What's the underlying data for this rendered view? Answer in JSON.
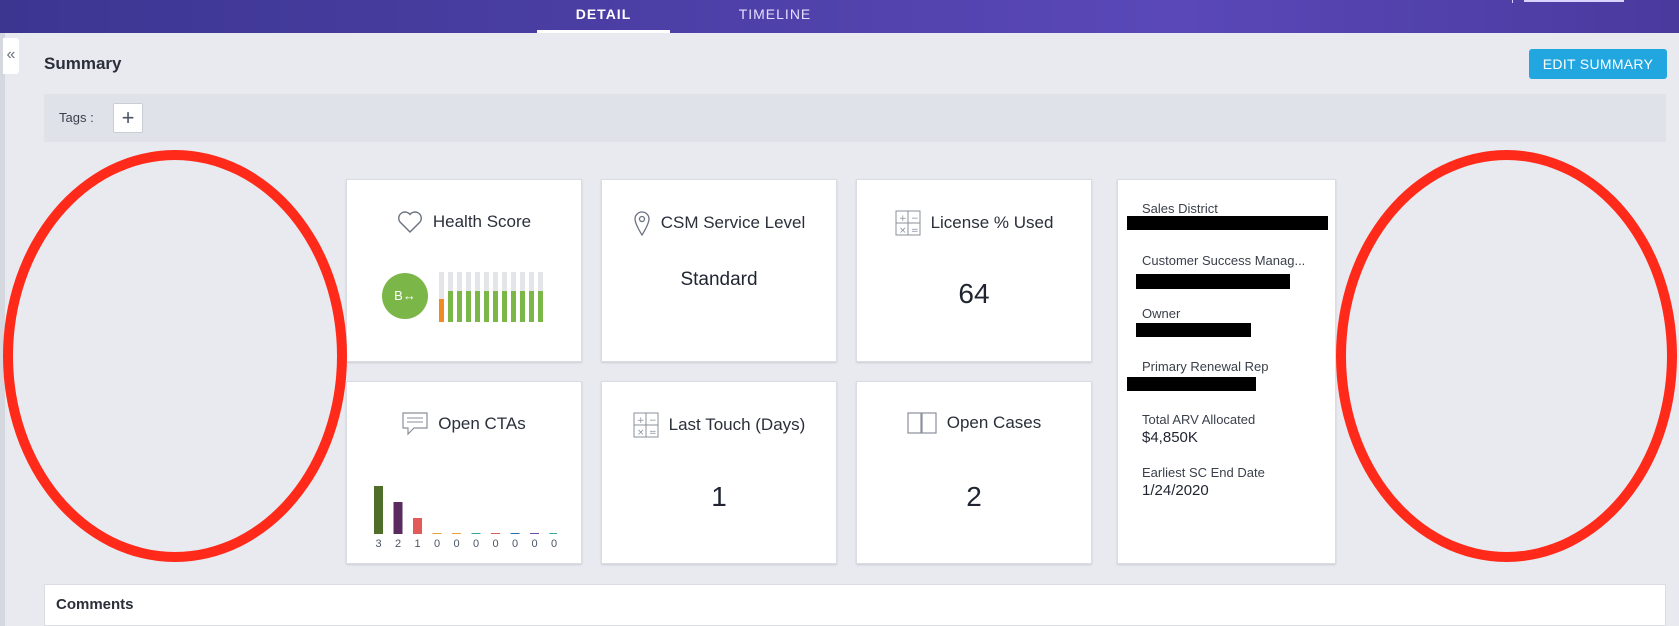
{
  "tabs": [
    {
      "label": "DETAIL",
      "active": true
    },
    {
      "label": "TIMELINE",
      "active": false
    }
  ],
  "sidebar": {
    "collapse_icon": "double-chevron-left-icon",
    "collapse_glyph": "«"
  },
  "summary": {
    "title": "Summary",
    "edit_button": "EDIT SUMMARY",
    "tags_label": "Tags :",
    "add_tag_glyph": "+"
  },
  "cards": {
    "health_score": {
      "title": "Health Score",
      "icon": "heart-icon",
      "badge": "B↔",
      "bar_fills": [
        0.45,
        0.62,
        0.62,
        0.62,
        0.62,
        0.62,
        0.62,
        0.62,
        0.62,
        0.62,
        0.62,
        0.62
      ]
    },
    "csm_service_level": {
      "title": "CSM Service Level",
      "icon": "location-pin-icon",
      "value": "Standard"
    },
    "license_used": {
      "title": "License % Used",
      "icon": "calculator-icon",
      "value": "64"
    },
    "open_ctas": {
      "title": "Open CTAs",
      "icon": "speech-bubble-icon",
      "counts": [
        "3",
        "2",
        "1",
        "0",
        "0",
        "0",
        "0",
        "0",
        "0",
        "0"
      ],
      "bar_values": [
        3,
        2,
        1,
        0,
        0,
        0,
        0,
        0,
        0,
        0
      ],
      "bar_colors": [
        "#4e6e2a",
        "#5a2b5e",
        "#e35a5a",
        "#e8a23c",
        "#e8a23c",
        "#3aa6a0",
        "#e35a5a",
        "#2f6fa8",
        "#6a4fa0",
        "#3aa6a0"
      ]
    },
    "last_touch": {
      "title": "Last Touch (Days)",
      "icon": "calculator-icon",
      "value": "1"
    },
    "open_cases": {
      "title": "Open Cases",
      "icon": "open-book-icon",
      "value": "2"
    }
  },
  "info": {
    "sales_district_label": "Sales District",
    "csm_label": "Customer Success Manag...",
    "owner_label": "Owner",
    "renewal_rep_label": "Primary Renewal Rep",
    "total_arv_label": "Total ARV Allocated",
    "total_arv_value": "$4,850K",
    "sc_end_label": "Earliest SC End Date",
    "sc_end_value": "1/24/2020"
  },
  "comments": {
    "title": "Comments"
  },
  "colors": {
    "accent": "#21a6e0",
    "annotation": "#ff2a1a",
    "health_green": "#7ab648",
    "health_orange": "#f08a24"
  }
}
